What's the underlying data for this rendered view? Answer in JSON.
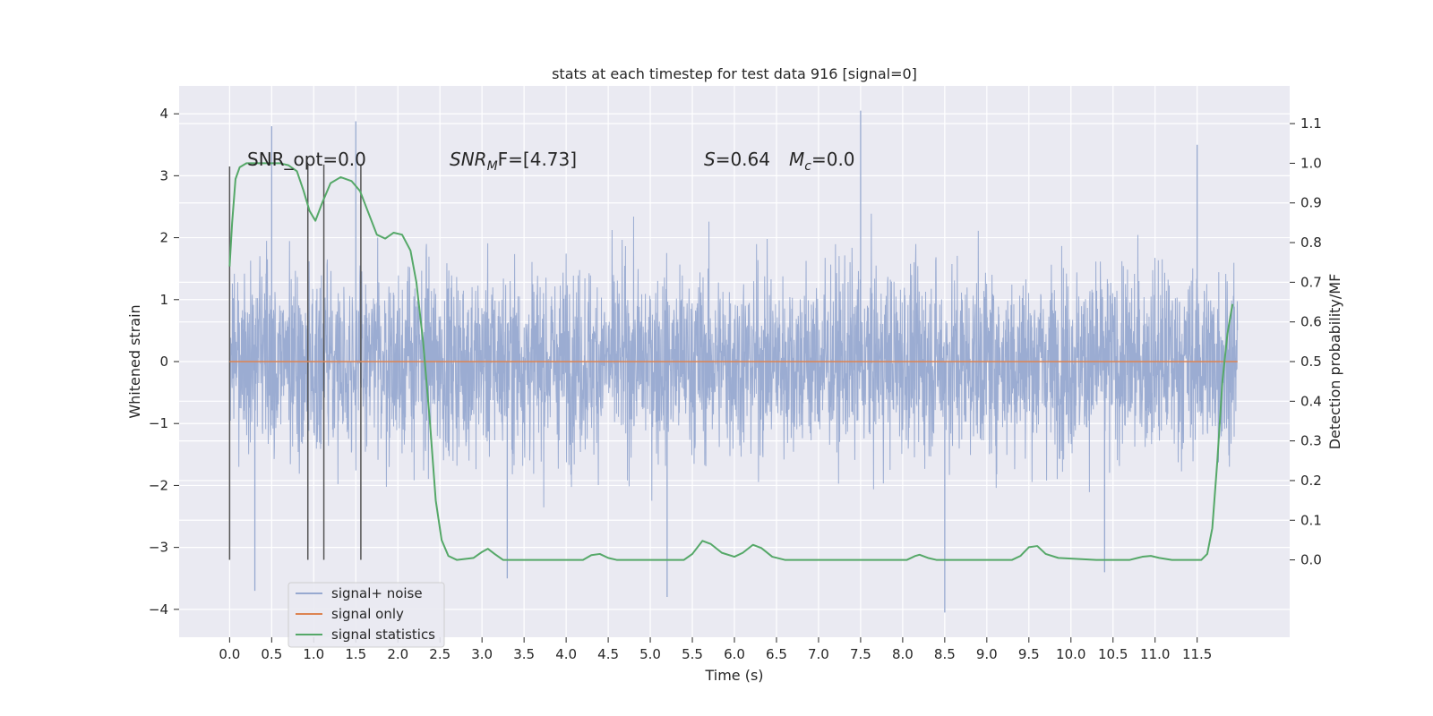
{
  "chart_data": {
    "type": "line",
    "title": "stats at each timestep for test data 916 [signal=0]",
    "xlabel": "Time (s)",
    "ylabel": "Whitened strain",
    "y2label": "Detection probability/MF",
    "xlim": [
      -0.6,
      12.6
    ],
    "ylim": [
      -4.45,
      4.45
    ],
    "y2lim": [
      -0.195,
      1.195
    ],
    "x_ticks": [
      0.0,
      0.5,
      1.0,
      1.5,
      2.0,
      2.5,
      3.0,
      3.5,
      4.0,
      4.5,
      5.0,
      5.5,
      6.0,
      6.5,
      7.0,
      7.5,
      8.0,
      8.5,
      9.0,
      9.5,
      10.0,
      10.5,
      11.0,
      11.5
    ],
    "x_tick_labels": [
      "0.0",
      "0.5",
      "1.0",
      "1.5",
      "2.0",
      "2.5",
      "3.0",
      "3.5",
      "4.0",
      "4.5",
      "5.0",
      "5.5",
      "6.0",
      "6.5",
      "7.0",
      "7.5",
      "8.0",
      "8.5",
      "9.0",
      "9.5",
      "10.0",
      "10.5",
      "11.0",
      "11.5"
    ],
    "y_ticks": [
      4,
      3,
      2,
      1,
      0,
      -1,
      -2,
      -3,
      -4
    ],
    "y_tick_labels": [
      "4",
      "3",
      "2",
      "1",
      "0",
      "−1",
      "−2",
      "−3",
      "−4"
    ],
    "y2_ticks": [
      1.1,
      1.0,
      0.9,
      0.8,
      0.7,
      0.6,
      0.5,
      0.4,
      0.3,
      0.2,
      0.1,
      0.0
    ],
    "y2_tick_labels": [
      "1.1",
      "1.0",
      "0.9",
      "0.8",
      "0.7",
      "0.6",
      "0.5",
      "0.4",
      "0.3",
      "0.2",
      "0.1",
      "0.0"
    ],
    "grid": true,
    "legend_position": "bottom-left",
    "annotations": {
      "snr_opt": "SNR_opt=0.0",
      "snr_mf_base": "SNR",
      "snr_mf_sub": "M",
      "snr_mf_rest": "F=[4.73]",
      "s_label": "S",
      "s_value": "=0.64",
      "mc_base": "M",
      "mc_sub": "c",
      "mc_value": "=0.0"
    },
    "series": [
      {
        "name": "signal+ noise",
        "color": "#97a9d0",
        "x_range": [
          0.0,
          11.98
        ],
        "peak_values": [
          {
            "x": 0.5,
            "y": 3.8
          },
          {
            "x": 1.5,
            "y": 3.88
          },
          {
            "x": 3.3,
            "y": -3.5
          },
          {
            "x": 5.2,
            "y": -3.8
          },
          {
            "x": 7.5,
            "y": 4.05
          },
          {
            "x": 8.5,
            "y": -4.05
          },
          {
            "x": 0.3,
            "y": -3.7
          },
          {
            "x": 11.5,
            "y": 3.5
          },
          {
            "x": 10.4,
            "y": -3.4
          }
        ]
      },
      {
        "name": "signal only",
        "color": "#dd8452",
        "points": [
          [
            0.0,
            0.0
          ],
          [
            11.98,
            0.0
          ]
        ]
      },
      {
        "name": "signal statistics",
        "color": "#55a868",
        "axis": "right",
        "points": [
          [
            0.0,
            0.74
          ],
          [
            0.03,
            0.85
          ],
          [
            0.07,
            0.96
          ],
          [
            0.12,
            0.99
          ],
          [
            0.2,
            1.0
          ],
          [
            0.6,
            1.0
          ],
          [
            0.7,
            0.995
          ],
          [
            0.8,
            0.98
          ],
          [
            0.88,
            0.93
          ],
          [
            0.95,
            0.88
          ],
          [
            1.02,
            0.855
          ],
          [
            1.1,
            0.9
          ],
          [
            1.2,
            0.95
          ],
          [
            1.32,
            0.965
          ],
          [
            1.45,
            0.955
          ],
          [
            1.55,
            0.93
          ],
          [
            1.65,
            0.875
          ],
          [
            1.75,
            0.82
          ],
          [
            1.85,
            0.81
          ],
          [
            1.95,
            0.825
          ],
          [
            2.05,
            0.82
          ],
          [
            2.15,
            0.78
          ],
          [
            2.22,
            0.7
          ],
          [
            2.3,
            0.55
          ],
          [
            2.38,
            0.35
          ],
          [
            2.45,
            0.15
          ],
          [
            2.52,
            0.05
          ],
          [
            2.6,
            0.01
          ],
          [
            2.7,
            0.0
          ],
          [
            2.9,
            0.005
          ],
          [
            3.0,
            0.02
          ],
          [
            3.07,
            0.028
          ],
          [
            3.15,
            0.015
          ],
          [
            3.25,
            0.0
          ],
          [
            4.2,
            0.0
          ],
          [
            4.3,
            0.012
          ],
          [
            4.4,
            0.015
          ],
          [
            4.5,
            0.005
          ],
          [
            4.6,
            0.0
          ],
          [
            5.4,
            0.0
          ],
          [
            5.5,
            0.015
          ],
          [
            5.62,
            0.048
          ],
          [
            5.72,
            0.04
          ],
          [
            5.85,
            0.018
          ],
          [
            6.0,
            0.008
          ],
          [
            6.1,
            0.018
          ],
          [
            6.22,
            0.038
          ],
          [
            6.32,
            0.03
          ],
          [
            6.45,
            0.008
          ],
          [
            6.6,
            0.0
          ],
          [
            8.05,
            0.0
          ],
          [
            8.15,
            0.01
          ],
          [
            8.2,
            0.013
          ],
          [
            8.3,
            0.005
          ],
          [
            8.4,
            0.0
          ],
          [
            9.3,
            0.0
          ],
          [
            9.4,
            0.01
          ],
          [
            9.5,
            0.032
          ],
          [
            9.6,
            0.035
          ],
          [
            9.7,
            0.015
          ],
          [
            9.85,
            0.005
          ],
          [
            10.3,
            0.0
          ],
          [
            10.7,
            0.0
          ],
          [
            10.85,
            0.008
          ],
          [
            10.95,
            0.01
          ],
          [
            11.05,
            0.005
          ],
          [
            11.2,
            0.0
          ],
          [
            11.55,
            0.0
          ],
          [
            11.62,
            0.015
          ],
          [
            11.68,
            0.08
          ],
          [
            11.74,
            0.25
          ],
          [
            11.8,
            0.45
          ],
          [
            11.86,
            0.57
          ],
          [
            11.92,
            0.645
          ]
        ]
      }
    ],
    "vertical_markers": [
      {
        "x": 0.0,
        "y_bottom": -3.2,
        "y_top": 3.15
      },
      {
        "x": 0.93,
        "y_bottom": -3.2,
        "y_top": 3.18
      },
      {
        "x": 1.12,
        "y_bottom": -3.2,
        "y_top": 3.18
      },
      {
        "x": 1.56,
        "y_bottom": -3.2,
        "y_top": 3.18
      }
    ],
    "extra_gridlines_right": [
      1.1,
      0.9,
      0.7,
      0.6,
      0.4,
      0.3,
      0.2,
      0.1
    ]
  }
}
